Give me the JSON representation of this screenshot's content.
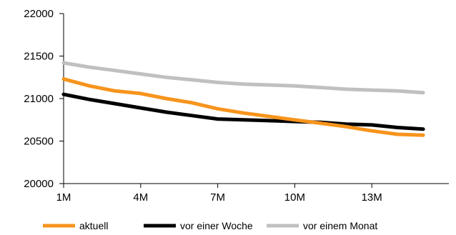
{
  "chart_data": {
    "type": "line",
    "title": "",
    "xlabel": "",
    "ylabel": "",
    "x": [
      1,
      2,
      3,
      4,
      5,
      6,
      7,
      8,
      9,
      10,
      11,
      12,
      13,
      14,
      15
    ],
    "x_ticks": [
      {
        "value": 1,
        "label": "1M"
      },
      {
        "value": 4,
        "label": "4M"
      },
      {
        "value": 7,
        "label": "7M"
      },
      {
        "value": 10,
        "label": "10M"
      },
      {
        "value": 13,
        "label": "13M"
      }
    ],
    "xlim": [
      1,
      16
    ],
    "ylim": [
      20000,
      22000
    ],
    "y_ticks": [
      {
        "value": 20000,
        "label": "20000"
      },
      {
        "value": 20500,
        "label": "20500"
      },
      {
        "value": 21000,
        "label": "21000"
      },
      {
        "value": 21500,
        "label": "21500"
      },
      {
        "value": 22000,
        "label": "22000"
      }
    ],
    "grid": false,
    "legend_position": "bottom",
    "series": [
      {
        "name": "aktuell",
        "color": "#f7941d",
        "values": [
          21230,
          21150,
          21090,
          21060,
          21000,
          20950,
          20880,
          20830,
          20790,
          20750,
          20710,
          20670,
          20620,
          20580,
          20570
        ]
      },
      {
        "name": "vor einer Woche",
        "color": "#000000",
        "values": [
          21050,
          20990,
          20940,
          20890,
          20840,
          20800,
          20760,
          20750,
          20740,
          20730,
          20720,
          20700,
          20690,
          20660,
          20640
        ]
      },
      {
        "name": "vor einem Monat",
        "color": "#c0c0c0",
        "values": [
          21420,
          21370,
          21330,
          21290,
          21250,
          21220,
          21190,
          21170,
          21160,
          21150,
          21130,
          21110,
          21100,
          21090,
          21070
        ]
      }
    ]
  }
}
